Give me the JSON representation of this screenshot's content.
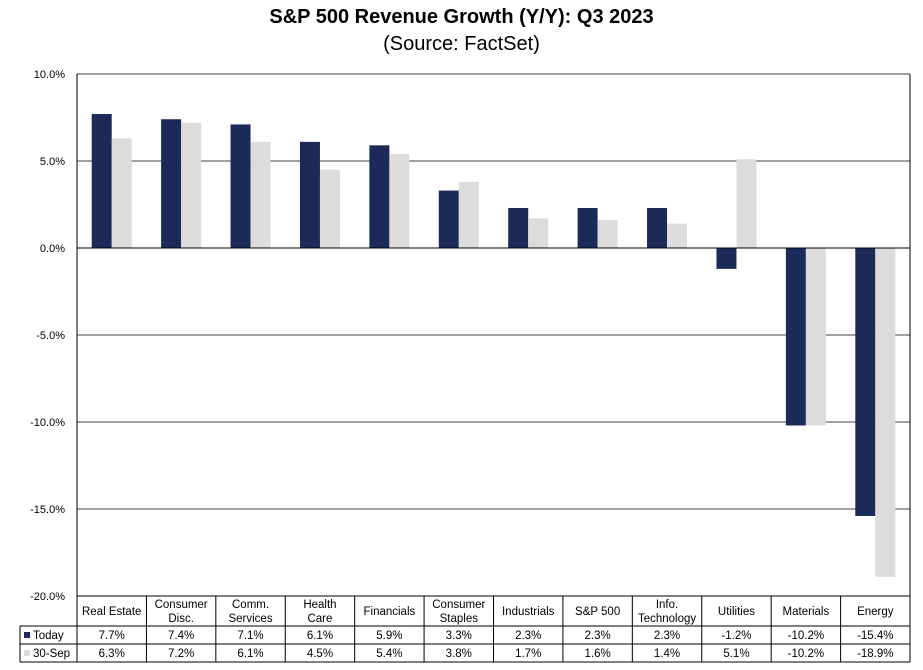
{
  "chart_data": {
    "type": "bar",
    "title": "S&P 500 Revenue Growth (Y/Y): Q3 2023",
    "subtitle": "(Source: FactSet)",
    "categories": [
      [
        "Real Estate"
      ],
      [
        "Consumer",
        "Disc."
      ],
      [
        "Comm.",
        "Services"
      ],
      [
        "Health",
        "Care"
      ],
      [
        "Financials"
      ],
      [
        "Consumer",
        "Staples"
      ],
      [
        "Industrials"
      ],
      [
        "S&P 500"
      ],
      [
        "Info.",
        "Technology"
      ],
      [
        "Utilities"
      ],
      [
        "Materials"
      ],
      [
        "Energy"
      ]
    ],
    "series": [
      {
        "name": "Today",
        "color": "#1b2a58",
        "values": [
          7.7,
          7.4,
          7.1,
          6.1,
          5.9,
          3.3,
          2.3,
          2.3,
          2.3,
          -1.2,
          -10.2,
          -15.4
        ],
        "labels": [
          "7.7%",
          "7.4%",
          "7.1%",
          "6.1%",
          "5.9%",
          "3.3%",
          "2.3%",
          "2.3%",
          "2.3%",
          "-1.2%",
          "-10.2%",
          "-15.4%"
        ]
      },
      {
        "name": "30-Sep",
        "color": "#dcdcdc",
        "values": [
          6.3,
          7.2,
          6.1,
          4.5,
          5.4,
          3.8,
          1.7,
          1.6,
          1.4,
          5.1,
          -10.2,
          -18.9
        ],
        "labels": [
          "6.3%",
          "7.2%",
          "6.1%",
          "4.5%",
          "5.4%",
          "3.8%",
          "1.7%",
          "1.6%",
          "1.4%",
          "5.1%",
          "-10.2%",
          "-18.9%"
        ]
      }
    ],
    "ylim": [
      -20,
      10
    ],
    "yticks": [
      10,
      5,
      0,
      -5,
      -10,
      -15,
      -20
    ],
    "ytick_labels": [
      "10.0%",
      "5.0%",
      "0.0%",
      "-5.0%",
      "-10.0%",
      "-15.0%",
      "-20.0%"
    ],
    "grid": true,
    "legend": "data-table-below",
    "xlabel": "",
    "ylabel": ""
  }
}
